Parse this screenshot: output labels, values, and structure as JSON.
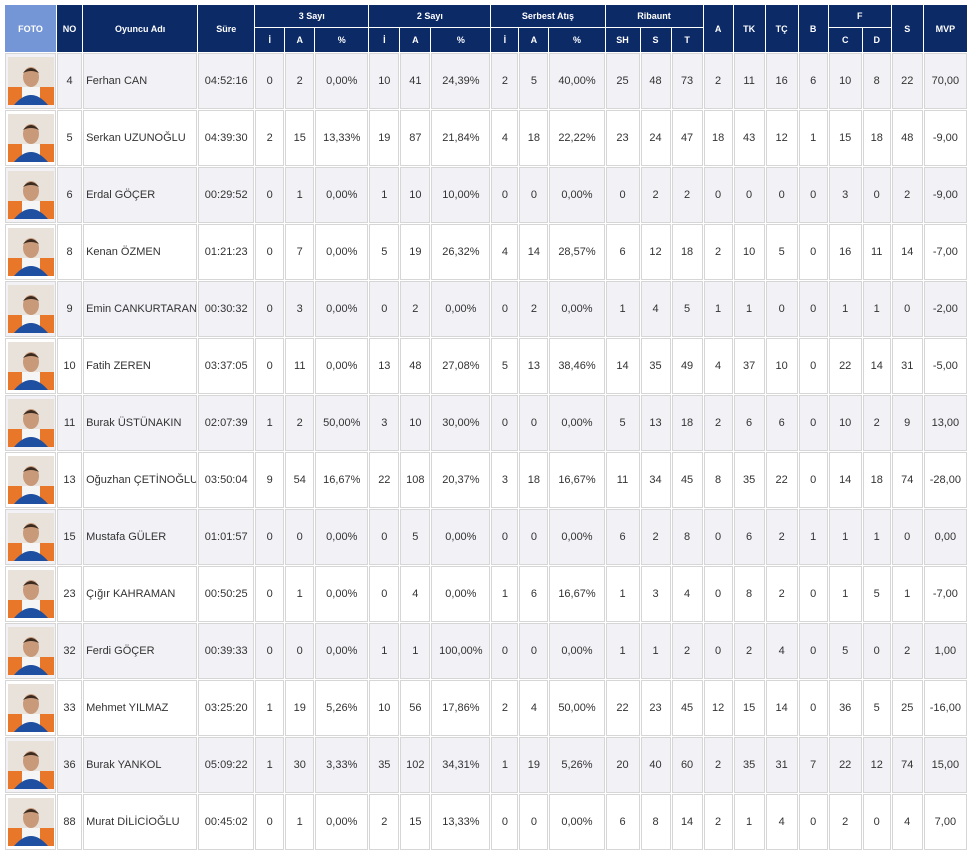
{
  "table": {
    "header": [
      "FOTO",
      "NO",
      "Oyuncu Adı",
      "Süre",
      "3 Sayı",
      "2 Sayı",
      "Serbest Atış",
      "Ribaunt",
      "A",
      "TK",
      "TÇ",
      "B",
      "F",
      "S",
      "MVP"
    ],
    "subheader": [
      "İ",
      "A",
      "%",
      "İ",
      "A",
      "%",
      "İ",
      "A",
      "%",
      "SH",
      "S",
      "T",
      "C",
      "D"
    ],
    "rows": [
      [
        "4",
        "Ferhan CAN",
        "04:52:16",
        "0",
        "2",
        "0,00%",
        "10",
        "41",
        "24,39%",
        "2",
        "5",
        "40,00%",
        "25",
        "48",
        "73",
        "2",
        "11",
        "16",
        "6",
        "10",
        "8",
        "22",
        "70,00"
      ],
      [
        "5",
        "Serkan UZUNOĞLU",
        "04:39:30",
        "2",
        "15",
        "13,33%",
        "19",
        "87",
        "21,84%",
        "4",
        "18",
        "22,22%",
        "23",
        "24",
        "47",
        "18",
        "43",
        "12",
        "1",
        "15",
        "18",
        "48",
        "-9,00"
      ],
      [
        "6",
        "Erdal GÖÇER",
        "00:29:52",
        "0",
        "1",
        "0,00%",
        "1",
        "10",
        "10,00%",
        "0",
        "0",
        "0,00%",
        "0",
        "2",
        "2",
        "0",
        "0",
        "0",
        "0",
        "3",
        "0",
        "2",
        "-9,00"
      ],
      [
        "8",
        "Kenan ÖZMEN",
        "01:21:23",
        "0",
        "7",
        "0,00%",
        "5",
        "19",
        "26,32%",
        "4",
        "14",
        "28,57%",
        "6",
        "12",
        "18",
        "2",
        "10",
        "5",
        "0",
        "16",
        "11",
        "14",
        "-7,00"
      ],
      [
        "9",
        "Emin CANKURTARAN",
        "00:30:32",
        "0",
        "3",
        "0,00%",
        "0",
        "2",
        "0,00%",
        "0",
        "2",
        "0,00%",
        "1",
        "4",
        "5",
        "1",
        "1",
        "0",
        "0",
        "1",
        "1",
        "0",
        "-2,00"
      ],
      [
        "10",
        "Fatih ZEREN",
        "03:37:05",
        "0",
        "11",
        "0,00%",
        "13",
        "48",
        "27,08%",
        "5",
        "13",
        "38,46%",
        "14",
        "35",
        "49",
        "4",
        "37",
        "10",
        "0",
        "22",
        "14",
        "31",
        "-5,00"
      ],
      [
        "11",
        "Burak ÜSTÜNAKIN",
        "02:07:39",
        "1",
        "2",
        "50,00%",
        "3",
        "10",
        "30,00%",
        "0",
        "0",
        "0,00%",
        "5",
        "13",
        "18",
        "2",
        "6",
        "6",
        "0",
        "10",
        "2",
        "9",
        "13,00"
      ],
      [
        "13",
        "Oğuzhan ÇETİNOĞLU",
        "03:50:04",
        "9",
        "54",
        "16,67%",
        "22",
        "108",
        "20,37%",
        "3",
        "18",
        "16,67%",
        "11",
        "34",
        "45",
        "8",
        "35",
        "22",
        "0",
        "14",
        "18",
        "74",
        "-28,00"
      ],
      [
        "15",
        "Mustafa GÜLER",
        "01:01:57",
        "0",
        "0",
        "0,00%",
        "0",
        "5",
        "0,00%",
        "0",
        "0",
        "0,00%",
        "6",
        "2",
        "8",
        "0",
        "6",
        "2",
        "1",
        "1",
        "1",
        "0",
        "0,00"
      ],
      [
        "23",
        "Çığır KAHRAMAN",
        "00:50:25",
        "0",
        "1",
        "0,00%",
        "0",
        "4",
        "0,00%",
        "1",
        "6",
        "16,67%",
        "1",
        "3",
        "4",
        "0",
        "8",
        "2",
        "0",
        "1",
        "5",
        "1",
        "-7,00"
      ],
      [
        "32",
        "Ferdi GÖÇER",
        "00:39:33",
        "0",
        "0",
        "0,00%",
        "1",
        "1",
        "100,00%",
        "0",
        "0",
        "0,00%",
        "1",
        "1",
        "2",
        "0",
        "2",
        "4",
        "0",
        "5",
        "0",
        "2",
        "1,00"
      ],
      [
        "33",
        "Mehmet YILMAZ",
        "03:25:20",
        "1",
        "19",
        "5,26%",
        "10",
        "56",
        "17,86%",
        "2",
        "4",
        "50,00%",
        "22",
        "23",
        "45",
        "12",
        "15",
        "14",
        "0",
        "36",
        "5",
        "25",
        "-16,00"
      ],
      [
        "36",
        "Burak YANKOL",
        "05:09:22",
        "1",
        "30",
        "3,33%",
        "35",
        "102",
        "34,31%",
        "1",
        "19",
        "5,26%",
        "20",
        "40",
        "60",
        "2",
        "35",
        "31",
        "7",
        "22",
        "12",
        "74",
        "15,00"
      ],
      [
        "88",
        "Murat DİLİCİOĞLU",
        "00:45:02",
        "0",
        "1",
        "0,00%",
        "2",
        "15",
        "13,33%",
        "0",
        "0",
        "0,00%",
        "6",
        "8",
        "14",
        "2",
        "1",
        "4",
        "0",
        "2",
        "0",
        "4",
        "7,00"
      ]
    ]
  }
}
